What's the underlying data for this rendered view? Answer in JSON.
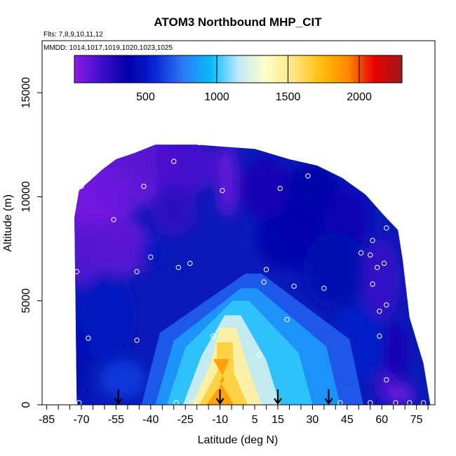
{
  "chart_data": {
    "type": "heatmap",
    "title": "ATOM3 Northbound MHP_CIT",
    "subtitle_flights": "Flts: 7,8,9,10,11,12",
    "subtitle_dates": "MMDD: 1014,1017,1019,1020,1023,1025",
    "xlabel": "Latitude (deg N)",
    "ylabel": "Altitude (m)",
    "xlim": [
      -87,
      83
    ],
    "ylim": [
      0,
      17500
    ],
    "xticks": [
      -85,
      -70,
      -55,
      -40,
      -25,
      -10,
      5,
      15,
      30,
      45,
      60,
      75
    ],
    "xtick_labels": [
      "-85",
      "-70",
      "-55",
      "-40",
      "-25",
      "-10",
      "5",
      "15",
      "30",
      "45",
      "60",
      "75"
    ],
    "yticks": [
      0,
      5000,
      10000,
      15000
    ],
    "ytick_labels": [
      "0",
      "5000",
      "10000",
      "15000"
    ],
    "colorbar": {
      "range": [
        0,
        2300
      ],
      "ticks": [
        500,
        1000,
        1500,
        2000
      ],
      "tick_labels": [
        "500",
        "1000",
        "1500",
        "2000"
      ],
      "stops": [
        "#8b1ce8",
        "#3c10c8",
        "#0000a8",
        "#0a28d8",
        "#2d7af5",
        "#08bcfb",
        "#bfe8fb",
        "#ffffc8",
        "#ffe680",
        "#ffbf10",
        "#ff8a00",
        "#e60000",
        "#9e1a1a"
      ]
    },
    "envelope": [
      [
        -72,
        0
      ],
      [
        -73,
        9000
      ],
      [
        -71,
        10300
      ],
      [
        -66,
        10800
      ],
      [
        -61,
        11300
      ],
      [
        -55,
        11800
      ],
      [
        -47,
        12100
      ],
      [
        -38,
        12500
      ],
      [
        -30,
        12500
      ],
      [
        -20,
        12500
      ],
      [
        -8,
        12400
      ],
      [
        5,
        12300
      ],
      [
        20,
        11800
      ],
      [
        32,
        11500
      ],
      [
        43,
        10900
      ],
      [
        53,
        10100
      ],
      [
        61,
        9100
      ],
      [
        67,
        8400
      ],
      [
        69,
        7000
      ],
      [
        72,
        4200
      ],
      [
        78,
        2000
      ],
      [
        81,
        0
      ]
    ],
    "dots": [
      [
        -19,
        12600
      ],
      [
        -30,
        11700
      ],
      [
        -70,
        10500
      ],
      [
        -43,
        10500
      ],
      [
        -9,
        10300
      ],
      [
        16,
        10400
      ],
      [
        28,
        11000
      ],
      [
        38,
        11500
      ],
      [
        -74,
        9600
      ],
      [
        -56,
        8900
      ],
      [
        -74,
        7500
      ],
      [
        -72,
        6400
      ],
      [
        -46,
        6400
      ],
      [
        -40,
        7100
      ],
      [
        -28,
        6600
      ],
      [
        -23,
        6800
      ],
      [
        10,
        6500
      ],
      [
        9,
        5900
      ],
      [
        22,
        5700
      ],
      [
        35,
        5600
      ],
      [
        51,
        7300
      ],
      [
        55,
        7200
      ],
      [
        56,
        7900
      ],
      [
        58,
        6600
      ],
      [
        61,
        6800
      ],
      [
        56,
        5800
      ],
      [
        59,
        4500
      ],
      [
        62,
        4800
      ],
      [
        -67,
        3200
      ],
      [
        -46,
        3100
      ],
      [
        -13,
        3300
      ],
      [
        7,
        2400
      ],
      [
        19,
        4100
      ],
      [
        59,
        3300
      ],
      [
        62,
        1200
      ],
      [
        -71,
        100
      ],
      [
        -29,
        100
      ],
      [
        -22,
        100
      ],
      [
        42,
        100
      ],
      [
        55,
        100
      ],
      [
        66,
        100
      ],
      [
        72,
        100
      ],
      [
        78,
        100
      ],
      [
        62,
        8500
      ]
    ],
    "arrows": [
      -54,
      -10,
      15,
      37
    ]
  }
}
